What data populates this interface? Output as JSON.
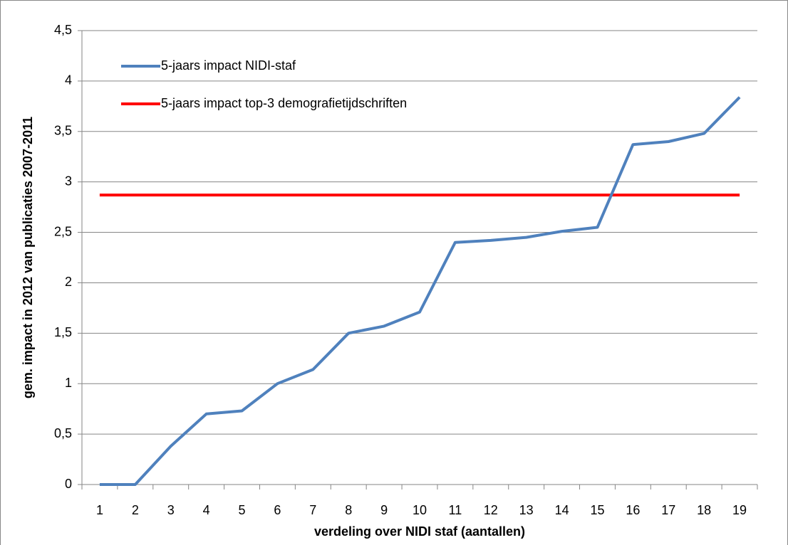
{
  "chart_data": {
    "type": "line",
    "xlabel": "verdeling over NIDI staf (aantallen)",
    "ylabel": "gem. impact in 2012 van publicaties 2007-2011",
    "categories": [
      "1",
      "2",
      "3",
      "4",
      "5",
      "6",
      "7",
      "8",
      "9",
      "10",
      "11",
      "12",
      "13",
      "14",
      "15",
      "16",
      "17",
      "18",
      "19"
    ],
    "series": [
      {
        "name": "5-jaars impact NIDI-staf",
        "color": "#4f81bd",
        "values": [
          0,
          0,
          0.38,
          0.7,
          0.73,
          1.0,
          1.14,
          1.5,
          1.57,
          1.71,
          2.4,
          2.42,
          2.45,
          2.51,
          2.55,
          3.37,
          3.4,
          3.48,
          3.84
        ]
      },
      {
        "name": "5-jaars impact top-3 demografietijdschriften",
        "color": "#ff0000",
        "values": [
          2.87,
          2.87,
          2.87,
          2.87,
          2.87,
          2.87,
          2.87,
          2.87,
          2.87,
          2.87,
          2.87,
          2.87,
          2.87,
          2.87,
          2.87,
          2.87,
          2.87,
          2.87,
          2.87
        ]
      }
    ],
    "ylim": [
      0,
      4.5
    ],
    "yticks": [
      0,
      {
        "value": 0.5,
        "label": "0,5"
      },
      1,
      {
        "value": 1.5,
        "label": "1,5"
      },
      2,
      {
        "value": 2.5,
        "label": "2,5"
      },
      3,
      {
        "value": 3.5,
        "label": "3,5"
      },
      4,
      {
        "value": 4.5,
        "label": "4,5"
      }
    ],
    "grid": true,
    "legend": "upper-left"
  }
}
